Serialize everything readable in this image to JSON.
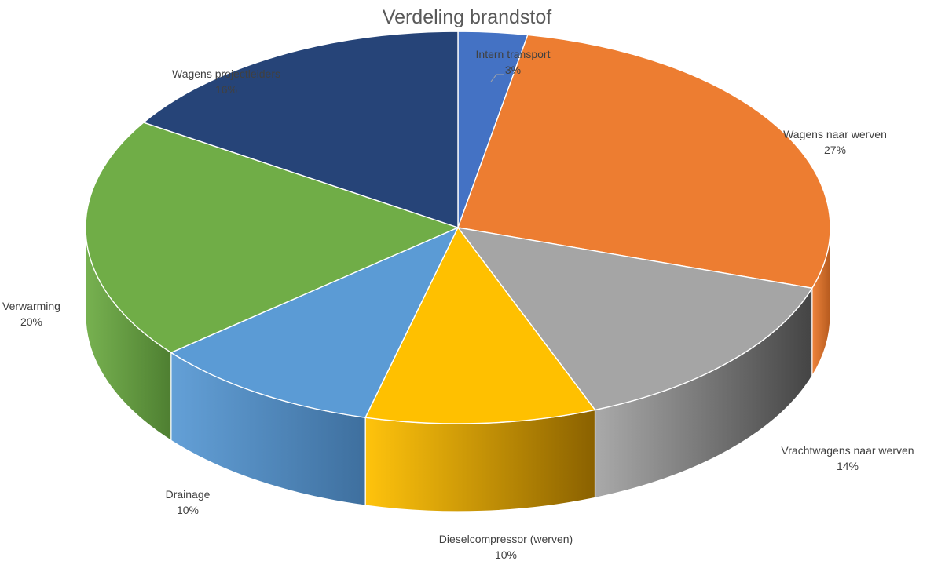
{
  "chart_data": {
    "type": "pie",
    "title": "Verdeling brandstof",
    "slices": [
      {
        "label": "Intern transport",
        "value": 3,
        "value_label": "3%",
        "color": "#4472C4",
        "side_color": "#2F5597"
      },
      {
        "label": "Wagens naar werven",
        "value": 27,
        "value_label": "27%",
        "color": "#ED7D31",
        "side_color": "#B55A1E"
      },
      {
        "label": "Vrachtwagens naar werven",
        "value": 14,
        "value_label": "14%",
        "color": "#A5A5A5",
        "side_color": "#444444"
      },
      {
        "label": "Dieselcompressor (werven)",
        "value": 10,
        "value_label": "10%",
        "color": "#FFC000",
        "side_color": "#8A6100"
      },
      {
        "label": "Drainage",
        "value": 10,
        "value_label": "10%",
        "color": "#5B9BD5",
        "side_color": "#3E6F9E"
      },
      {
        "label": "Verwarming",
        "value": 20,
        "value_label": "20%",
        "color": "#70AD47",
        "side_color": "#4E7F31"
      },
      {
        "label": "Wagens projectleiders",
        "value": 16,
        "value_label": "16%",
        "color": "#264478",
        "side_color": "#1A2F55"
      }
    ],
    "style": "3d",
    "legend": "none",
    "data_labels": "category and percentage"
  }
}
